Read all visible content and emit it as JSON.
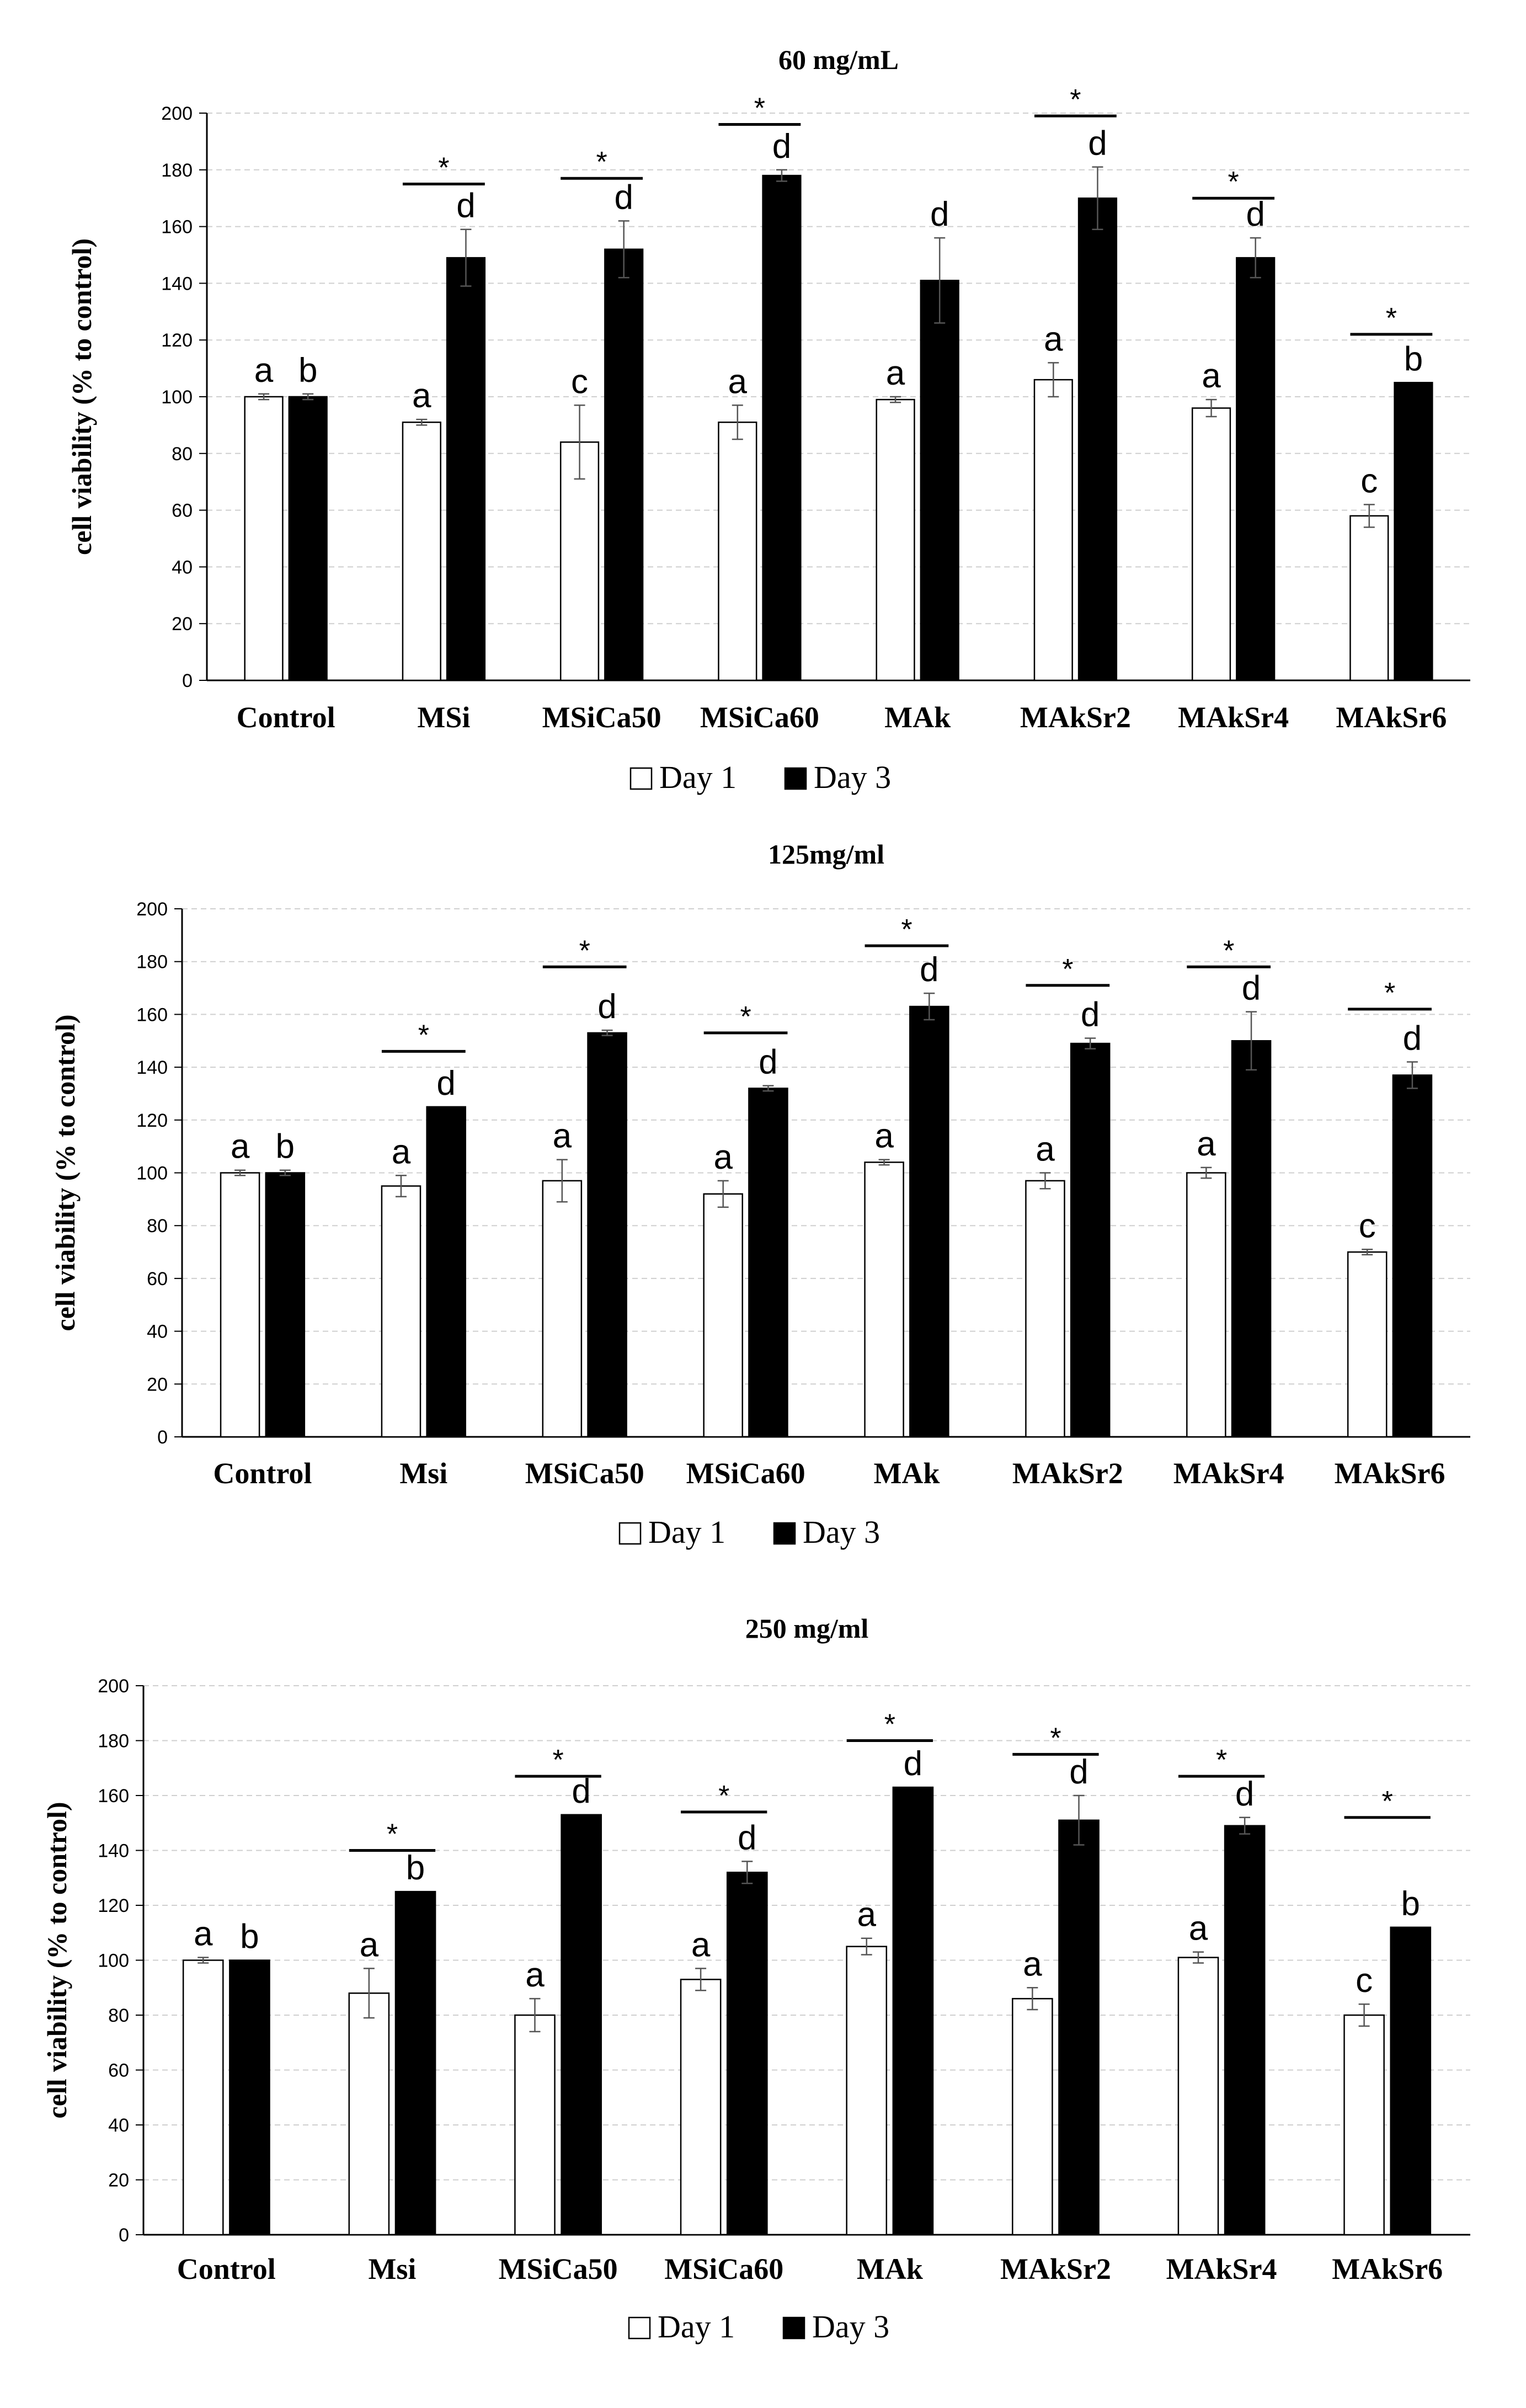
{
  "chart_data": [
    {
      "type": "bar",
      "title": "60 mg/mL",
      "ylabel": "cell viability (% to control)",
      "xlabel": "",
      "ylim": [
        0,
        200
      ],
      "ytick_step": 20,
      "grid": true,
      "legend_position": "bottom",
      "categories": [
        "Control",
        "MSi",
        "MSiCa50",
        "MSiCa60",
        "MAk",
        "MAkSr2",
        "MAkSr4",
        "MAkSr6"
      ],
      "series": [
        {
          "name": "Day 1",
          "color": "#ffffff",
          "values": [
            100,
            91,
            84,
            91,
            99,
            106,
            96,
            58
          ],
          "errors": [
            1,
            1,
            13,
            6,
            1,
            6,
            3,
            4
          ],
          "letters": [
            "a",
            "a",
            "c",
            "a",
            "a",
            "a",
            "a",
            "c"
          ]
        },
        {
          "name": "Day 3",
          "color": "#000000",
          "values": [
            100,
            149,
            152,
            178,
            141,
            170,
            149,
            105
          ],
          "errors": [
            1,
            10,
            10,
            2,
            15,
            11,
            7,
            0
          ],
          "letters": [
            "b",
            "d",
            "d",
            "d",
            "d",
            "d",
            "d",
            "b"
          ]
        }
      ],
      "significance": [
        {
          "category": "MSi",
          "symbol": "*",
          "y": 175
        },
        {
          "category": "MSiCa50",
          "symbol": "*",
          "y": 177
        },
        {
          "category": "MSiCa60",
          "symbol": "*",
          "y": 196
        },
        {
          "category": "MAkSr2",
          "symbol": "*",
          "y": 199
        },
        {
          "category": "MAkSr4",
          "symbol": "*",
          "y": 170
        },
        {
          "category": "MAkSr6",
          "symbol": "*",
          "y": 122
        }
      ]
    },
    {
      "type": "bar",
      "title": "125mg/ml",
      "ylabel": "cell viability (% to control)",
      "xlabel": "",
      "ylim": [
        0,
        200
      ],
      "ytick_step": 20,
      "grid": true,
      "legend_position": "bottom",
      "categories": [
        "Control",
        "Msi",
        "MSiCa50",
        "MSiCa60",
        "MAk",
        "MAkSr2",
        "MAkSr4",
        "MAkSr6"
      ],
      "series": [
        {
          "name": "Day 1",
          "color": "#ffffff",
          "values": [
            100,
            95,
            97,
            92,
            104,
            97,
            100,
            70
          ],
          "errors": [
            1,
            4,
            8,
            5,
            1,
            3,
            2,
            1
          ],
          "letters": [
            "a",
            "a",
            "a",
            "a",
            "a",
            "a",
            "a",
            "c"
          ]
        },
        {
          "name": "Day 3",
          "color": "#000000",
          "values": [
            100,
            125,
            153,
            132,
            163,
            149,
            150,
            137
          ],
          "errors": [
            1,
            0,
            1,
            1,
            5,
            2,
            11,
            5
          ],
          "letters": [
            "b",
            "d",
            "d",
            "d",
            "d",
            "d",
            "d",
            "d"
          ]
        }
      ],
      "significance": [
        {
          "category": "Msi",
          "symbol": "*",
          "y": 146
        },
        {
          "category": "MSiCa50",
          "symbol": "*",
          "y": 178
        },
        {
          "category": "MSiCa60",
          "symbol": "*",
          "y": 153
        },
        {
          "category": "MAk",
          "symbol": "*",
          "y": 186
        },
        {
          "category": "MAkSr2",
          "symbol": "*",
          "y": 171
        },
        {
          "category": "MAkSr4",
          "symbol": "*",
          "y": 178
        },
        {
          "category": "MAkSr6",
          "symbol": "*",
          "y": 162
        }
      ]
    },
    {
      "type": "bar",
      "title": "250 mg/ml",
      "ylabel": "cell viability (% to control)",
      "xlabel": "",
      "ylim": [
        0,
        200
      ],
      "ytick_step": 20,
      "grid": true,
      "legend_position": "bottom",
      "categories": [
        "Control",
        "Msi",
        "MSiCa50",
        "MSiCa60",
        "MAk",
        "MAkSr2",
        "MAkSr4",
        "MAkSr6"
      ],
      "series": [
        {
          "name": "Day 1",
          "color": "#ffffff",
          "values": [
            100,
            88,
            80,
            93,
            105,
            86,
            101,
            80
          ],
          "errors": [
            1,
            9,
            6,
            4,
            3,
            4,
            2,
            4
          ],
          "letters": [
            "a",
            "a",
            "a",
            "a",
            "a",
            "a",
            "a",
            "c"
          ]
        },
        {
          "name": "Day 3",
          "color": "#000000",
          "values": [
            100,
            125,
            153,
            132,
            163,
            151,
            149,
            112
          ],
          "errors": [
            0,
            0,
            0,
            4,
            0,
            9,
            3,
            0
          ],
          "letters": [
            "b",
            "b",
            "d",
            "d",
            "d",
            "d",
            "d",
            "b"
          ]
        }
      ],
      "significance": [
        {
          "category": "Msi",
          "symbol": "*",
          "y": 140
        },
        {
          "category": "MSiCa50",
          "symbol": "*",
          "y": 167
        },
        {
          "category": "MSiCa60",
          "symbol": "*",
          "y": 154
        },
        {
          "category": "MAk",
          "symbol": "*",
          "y": 180
        },
        {
          "category": "MAkSr2",
          "symbol": "*",
          "y": 175
        },
        {
          "category": "MAkSr4",
          "symbol": "*",
          "y": 167
        },
        {
          "category": "MAkSr6",
          "symbol": "*",
          "y": 152
        }
      ]
    }
  ]
}
